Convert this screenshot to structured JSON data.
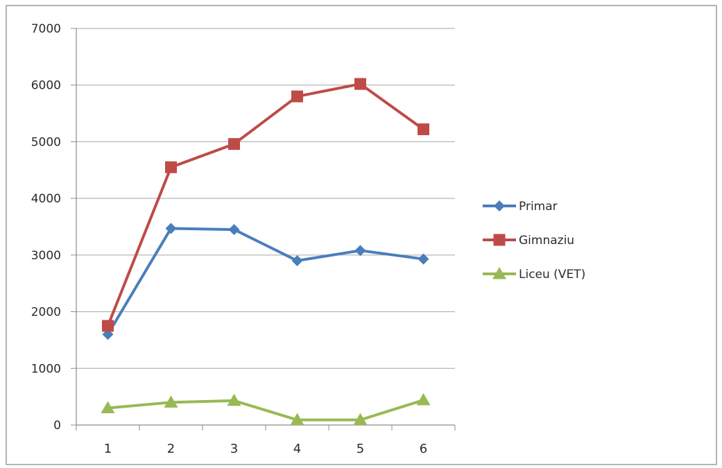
{
  "chart_data": {
    "type": "line",
    "title": "",
    "xlabel": "",
    "ylabel": "",
    "categories": [
      "1",
      "2",
      "3",
      "4",
      "5",
      "6"
    ],
    "ylim": [
      0,
      7000
    ],
    "yticks": [
      "0",
      "1000",
      "2000",
      "3000",
      "4000",
      "5000",
      "6000",
      "7000"
    ],
    "grid": true,
    "legend_position": "right",
    "series": [
      {
        "name": "Primar",
        "color": "#4a7ebb",
        "marker": "diamond",
        "values": [
          1600,
          3470,
          3450,
          2900,
          3080,
          2930
        ]
      },
      {
        "name": "Gimnaziu",
        "color": "#be4b48",
        "marker": "square",
        "values": [
          1750,
          4550,
          4960,
          5800,
          6020,
          5220
        ]
      },
      {
        "name": "Liceu (VET)",
        "color": "#98b954",
        "marker": "triangle",
        "values": [
          300,
          400,
          430,
          90,
          90,
          440
        ]
      }
    ]
  }
}
